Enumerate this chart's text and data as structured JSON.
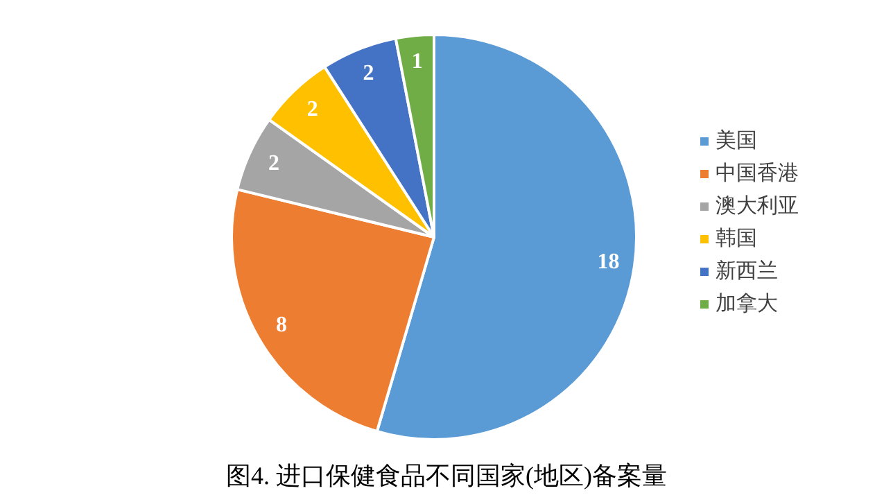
{
  "chart_data": {
    "type": "pie",
    "title": "图4. 进口保健食品不同国家(地区)备案量",
    "categories": [
      "美国",
      "中国香港",
      "澳大利亚",
      "韩国",
      "新西兰",
      "加拿大"
    ],
    "values": [
      18,
      8,
      2,
      2,
      2,
      1
    ],
    "colors": [
      "#5b9bd5",
      "#ed7d31",
      "#a5a5a5",
      "#ffc000",
      "#4472c4",
      "#70ad47"
    ],
    "data_labels": true,
    "legend": "right"
  }
}
